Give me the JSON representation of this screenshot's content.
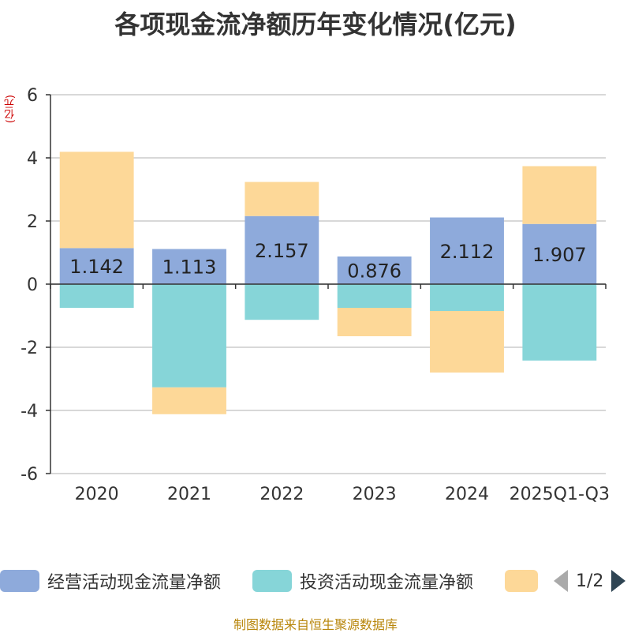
{
  "title": "各项现金流净额历年变化情况(亿元)",
  "y_unit": "(亿元)",
  "source": "制图数据来自恒生聚源数据库",
  "legend": {
    "pager_text": "1/2"
  },
  "chart_data": {
    "type": "bar",
    "stacked": true,
    "categories": [
      "2020",
      "2021",
      "2022",
      "2023",
      "2024",
      "2025Q1-Q3"
    ],
    "ylim": [
      -6,
      6
    ],
    "yticks": [
      6,
      4,
      2,
      0,
      -2,
      -4,
      -6
    ],
    "grid": true,
    "legend_position": "bottom",
    "series": [
      {
        "name": "经营活动现金流量净额",
        "color": "#8eaadb",
        "values": [
          1.142,
          1.113,
          2.157,
          0.876,
          2.112,
          1.907
        ],
        "labels": [
          "1.142",
          "1.113",
          "2.157",
          "0.876",
          "2.112",
          "1.907"
        ]
      },
      {
        "name": "投资活动现金流量净额",
        "color": "#86d5d8",
        "values": [
          -0.75,
          -3.27,
          -1.13,
          -0.75,
          -0.85,
          -2.42
        ]
      },
      {
        "name": "",
        "color": "#fdd898",
        "values": [
          3.05,
          -0.85,
          1.08,
          -0.9,
          -1.95,
          1.83
        ]
      }
    ]
  }
}
